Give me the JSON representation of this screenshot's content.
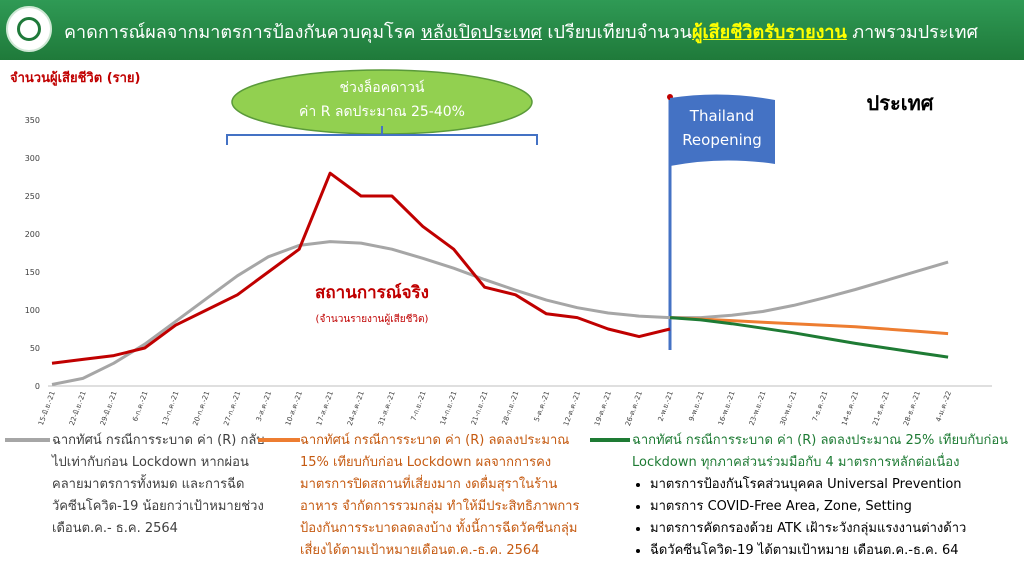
{
  "header": {
    "title_parts": [
      "คาดการณ์ผลจากมาตรการป้องกันควบคุมโรค",
      "หลังเปิดประเทศ",
      "เปรียบเทียบจำนวน",
      "ผู้เสียชีวิตรับรายงาน",
      "ภาพรวมประเทศ"
    ]
  },
  "chart_data": {
    "type": "line",
    "y_label": "จำนวนผู้เสียชีวิต (ราย)",
    "region_label": "ประเทศ",
    "lockdown_note": [
      "ช่วงล็อคดาวน์",
      "ค่า R ลดประมาณ 25-40%"
    ],
    "reopening_flag": [
      "Thailand",
      "Reopening"
    ],
    "actual_note": "(จำนวนรายงานผู้เสียชีวิต)",
    "categories": [
      "15-มิ.ย.-21",
      "22-มิ.ย.-21",
      "29-มิ.ย.-21",
      "6-ก.ค.-21",
      "13-ก.ค.-21",
      "20-ก.ค.-21",
      "27-ก.ค.-21",
      "3-ส.ค.-21",
      "10-ส.ค.-21",
      "17-ส.ค.-21",
      "24-ส.ค.-21",
      "31-ส.ค.-21",
      "7-ก.ย.-21",
      "14-ก.ย.-21",
      "21-ก.ย.-21",
      "28-ก.ย.-21",
      "5-ต.ค.-21",
      "12-ต.ค.-21",
      "19-ต.ค.-21",
      "26-ต.ค.-21",
      "2-พ.ย.-21",
      "9-พ.ย.-21",
      "16-พ.ย.-21",
      "23-พ.ย.-21",
      "30-พ.ย.-21",
      "7-ธ.ค.-21",
      "14-ธ.ค.-21",
      "21-ธ.ค.-21",
      "28-ธ.ค.-21",
      "4-ม.ค.-22"
    ],
    "ylim": [
      0,
      350
    ],
    "yticks": [
      0,
      50,
      100,
      150,
      200,
      250,
      300,
      350
    ],
    "grid": false,
    "series": [
      {
        "name": "สถานการณ์จริง",
        "color": "#c00000",
        "values": [
          30,
          35,
          40,
          50,
          80,
          100,
          120,
          150,
          180,
          280,
          250,
          250,
          210,
          180,
          130,
          120,
          95,
          90,
          75,
          65,
          75,
          null,
          null,
          null,
          null,
          null,
          null,
          null,
          null,
          null
        ]
      },
      {
        "name": "ฉากทัศน์ กรณีการระบาด ค่า (R) กลับไปเท่ากับก่อน Lockdown หากผ่อนคลายมาตรการทั้งหมด และการฉีดวัคซีนโควิด-19 น้อยกว่าเป้าหมายช่วงเดือนต.ค.- ธ.ค. 2564",
        "color": "#a6a6a6",
        "text_color": "#404040",
        "values": [
          2,
          10,
          30,
          55,
          85,
          115,
          145,
          170,
          185,
          190,
          188,
          180,
          168,
          155,
          140,
          126,
          113,
          103,
          96,
          92,
          90,
          90,
          93,
          98,
          106,
          116,
          127,
          139,
          151,
          163
        ]
      },
      {
        "name": "ฉากทัศน์ กรณีการระบาด ค่า (R) ลดลงประมาณ 15% เทียบกับก่อน Lockdown ผลจากการคงมาตรการปิดสถานที่เสี่ยงมาก งดดื่มสุราในร้านอาหาร จำกัดการรวมกลุ่ม ทำให้มีประสิทธิภาพการป้องกันการระบาดลดลงบ้าง ทั้งนี้การฉีดวัคซีนกลุ่มเสี่ยงได้ตามเป้าหมายเดือนต.ค.-ธ.ค. 2564",
        "color": "#ed7d31",
        "text_color": "#c55a11",
        "values": [
          null,
          null,
          null,
          null,
          null,
          null,
          null,
          null,
          null,
          null,
          null,
          null,
          null,
          null,
          null,
          null,
          null,
          null,
          null,
          null,
          90,
          88,
          86,
          84,
          82,
          80,
          78,
          75,
          72,
          69
        ]
      },
      {
        "name": "ฉากทัศน์ กรณีการระบาด ค่า (R) ลดลงประมาณ 25% เทียบกับก่อน Lockdown ทุกภาคส่วนร่วมมือกับ 4 มาตรการหลักต่อเนื่อง",
        "color": "#1e7b34",
        "text_color": "#1e7b34",
        "values": [
          null,
          null,
          null,
          null,
          null,
          null,
          null,
          null,
          null,
          null,
          null,
          null,
          null,
          null,
          null,
          null,
          null,
          null,
          null,
          null,
          90,
          87,
          82,
          76,
          70,
          63,
          56,
          50,
          44,
          38
        ],
        "bullets": [
          "มาตรการป้องกันโรคส่วนบุคคล Universal Prevention",
          "มาตรการ COVID-Free Area, Zone, Setting",
          "มาตรการคัดกรองด้วย ATK เฝ้าระวังกลุ่มแรงงานต่างด้าว",
          "ฉีดวัคซีนโควิด-19 ได้ตามเป้าหมาย เดือนต.ค.-ธ.ค. 64"
        ]
      }
    ]
  }
}
